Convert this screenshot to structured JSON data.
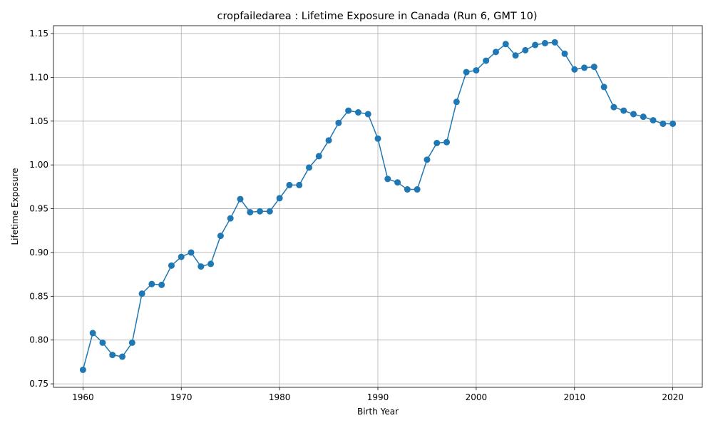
{
  "chart_data": {
    "type": "line",
    "title": "cropfailedarea : Lifetime Exposure in Canada (Run 6, GMT 10)",
    "xlabel": "Birth Year",
    "ylabel": "Lifetime Exposure",
    "xlim": [
      1957,
      2023
    ],
    "ylim": [
      0.746,
      1.159
    ],
    "xticks": [
      1960,
      1970,
      1980,
      1990,
      2000,
      2010,
      2020
    ],
    "yticks": [
      0.75,
      0.8,
      0.85,
      0.9,
      0.95,
      1.0,
      1.05,
      1.1,
      1.15
    ],
    "ytick_labels": [
      "0.75",
      "0.80",
      "0.85",
      "0.90",
      "0.95",
      "1.00",
      "1.05",
      "1.10",
      "1.15"
    ],
    "grid": true,
    "color": "#1f77b4",
    "marker": "circle",
    "x": [
      1960,
      1961,
      1962,
      1963,
      1964,
      1965,
      1966,
      1967,
      1968,
      1969,
      1970,
      1971,
      1972,
      1973,
      1974,
      1975,
      1976,
      1977,
      1978,
      1979,
      1980,
      1981,
      1982,
      1983,
      1984,
      1985,
      1986,
      1987,
      1988,
      1989,
      1990,
      1991,
      1992,
      1993,
      1994,
      1995,
      1996,
      1997,
      1998,
      1999,
      2000,
      2001,
      2002,
      2003,
      2004,
      2005,
      2006,
      2007,
      2008,
      2009,
      2010,
      2011,
      2012,
      2013,
      2014,
      2015,
      2016,
      2017,
      2018,
      2019,
      2020
    ],
    "y": [
      0.766,
      0.808,
      0.797,
      0.783,
      0.781,
      0.797,
      0.853,
      0.864,
      0.863,
      0.885,
      0.895,
      0.9,
      0.884,
      0.887,
      0.919,
      0.939,
      0.961,
      0.946,
      0.947,
      0.947,
      0.962,
      0.977,
      0.977,
      0.997,
      1.01,
      1.028,
      1.048,
      1.062,
      1.06,
      1.058,
      1.03,
      0.984,
      0.98,
      0.972,
      0.972,
      1.006,
      1.025,
      1.026,
      1.072,
      1.106,
      1.108,
      1.119,
      1.129,
      1.138,
      1.125,
      1.131,
      1.137,
      1.139,
      1.14,
      1.127,
      1.109,
      1.111,
      1.112,
      1.089,
      1.066,
      1.062,
      1.058,
      1.055,
      1.051,
      1.047,
      1.047
    ]
  }
}
